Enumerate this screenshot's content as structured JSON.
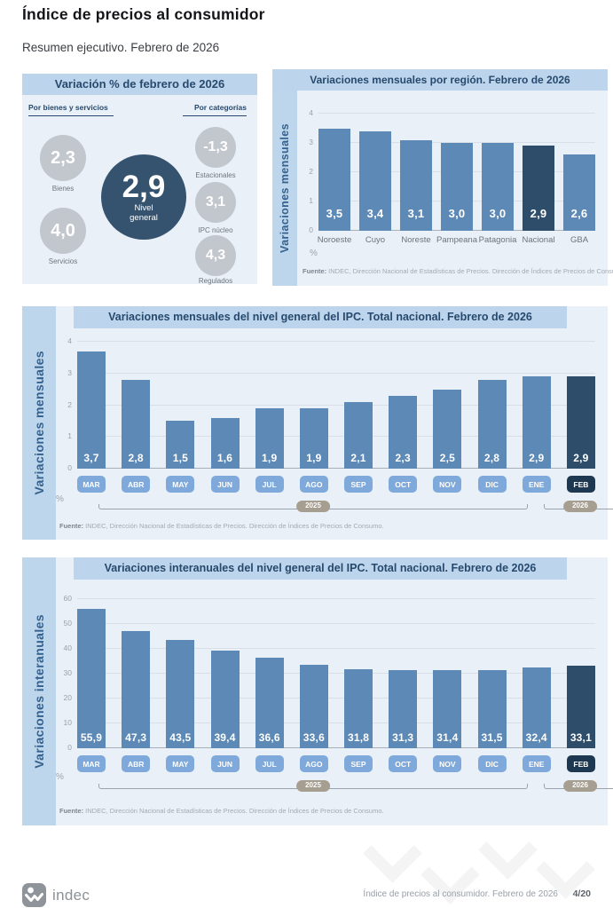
{
  "header": {
    "title": "Índice de precios al consumidor",
    "subtitle": "Resumen ejecutivo. Febrero de 2026"
  },
  "summary": {
    "title": "Variación % de febrero de 2026",
    "left_group": {
      "label": "Por bienes y servicios",
      "items": [
        {
          "value": "2,3",
          "label": "Bienes"
        },
        {
          "value": "4,0",
          "label": "Servicios"
        }
      ]
    },
    "center": {
      "value": "2,9",
      "label_line1": "Nivel",
      "label_line2": "general"
    },
    "right_group": {
      "label": "Por categorías",
      "items": [
        {
          "value": "-1,3",
          "label": "Estacionales"
        },
        {
          "value": "3,1",
          "label": "IPC núcleo"
        },
        {
          "value": "4,3",
          "label": "Regulados"
        }
      ]
    }
  },
  "source_note": {
    "bold": "Fuente:",
    "text": " INDEC, Dirección Nacional de Estadísticas de Precios. Dirección de Índices de Precios de Consumo."
  },
  "chart_data": [
    {
      "type": "bar",
      "title": "Variaciones mensuales por región. Febrero de 2026",
      "ylabel": "Variaciones mensuales",
      "unit": "%",
      "categories": [
        "Noroeste",
        "Cuyo",
        "Noreste",
        "Pampeana",
        "Patagonia",
        "Nacional",
        "GBA"
      ],
      "values": [
        3.5,
        3.4,
        3.1,
        3.0,
        3.0,
        2.9,
        2.6
      ],
      "value_labels": [
        "3,5",
        "3,4",
        "3,1",
        "3,0",
        "3,0",
        "2,9",
        "2,6"
      ],
      "highlight_index": 5,
      "ylim": [
        0,
        4
      ],
      "yticks": [
        0,
        1,
        2,
        3,
        4
      ],
      "grid": true,
      "legend": "none"
    },
    {
      "type": "bar",
      "title": "Variaciones mensuales del nivel general del IPC. Total nacional. Febrero de 2026",
      "ylabel": "Variaciones mensuales",
      "unit": "%",
      "categories": [
        "MAR",
        "ABR",
        "MAY",
        "JUN",
        "JUL",
        "AGO",
        "SEP",
        "OCT",
        "NOV",
        "DIC",
        "ENE",
        "FEB"
      ],
      "values": [
        3.7,
        2.8,
        1.5,
        1.6,
        1.9,
        1.9,
        2.1,
        2.3,
        2.5,
        2.8,
        2.9,
        2.9
      ],
      "value_labels": [
        "3,7",
        "2,8",
        "1,5",
        "1,6",
        "1,9",
        "1,9",
        "2,1",
        "2,3",
        "2,5",
        "2,8",
        "2,9",
        "2,9"
      ],
      "highlight_index": 11,
      "ylim": [
        0,
        4
      ],
      "yticks": [
        0,
        1,
        2,
        3,
        4
      ],
      "grid": true,
      "legend": "none",
      "year_groups": [
        {
          "label": "2025",
          "span": [
            0,
            9
          ]
        },
        {
          "label": "2026",
          "span": [
            10,
            11
          ]
        }
      ]
    },
    {
      "type": "bar",
      "title": "Variaciones interanuales del nivel general del IPC. Total nacional. Febrero de 2026",
      "ylabel": "Variaciones interanuales",
      "unit": "%",
      "categories": [
        "MAR",
        "ABR",
        "MAY",
        "JUN",
        "JUL",
        "AGO",
        "SEP",
        "OCT",
        "NOV",
        "DIC",
        "ENE",
        "FEB"
      ],
      "values": [
        55.9,
        47.3,
        43.5,
        39.4,
        36.6,
        33.6,
        31.8,
        31.3,
        31.4,
        31.5,
        32.4,
        33.1
      ],
      "value_labels": [
        "55,9",
        "47,3",
        "43,5",
        "39,4",
        "36,6",
        "33,6",
        "31,8",
        "31,3",
        "31,4",
        "31,5",
        "32,4",
        "33,1"
      ],
      "highlight_index": 11,
      "ylim": [
        0,
        60
      ],
      "yticks": [
        0,
        10,
        20,
        30,
        40,
        50,
        60
      ],
      "grid": true,
      "legend": "none",
      "year_groups": [
        {
          "label": "2025",
          "span": [
            0,
            9
          ]
        },
        {
          "label": "2026",
          "span": [
            10,
            11
          ]
        }
      ]
    }
  ],
  "footer": {
    "brand": "indec",
    "caption": "Índice de precios al consumidor. Febrero de 2026",
    "page": "4/20"
  },
  "colors": {
    "bar": "#5d89b6",
    "bar_highlight": "#2e4d6b",
    "badge": "#7fa9da",
    "badge_highlight": "#1d3850",
    "year_pill": "#a69e90",
    "panel_bg": "#e9f0f8",
    "band_bg": "#bdd5ec",
    "circle_gray": "#c2c6cd",
    "circle_dark": "#35536f",
    "title_navy": "#27496d"
  }
}
